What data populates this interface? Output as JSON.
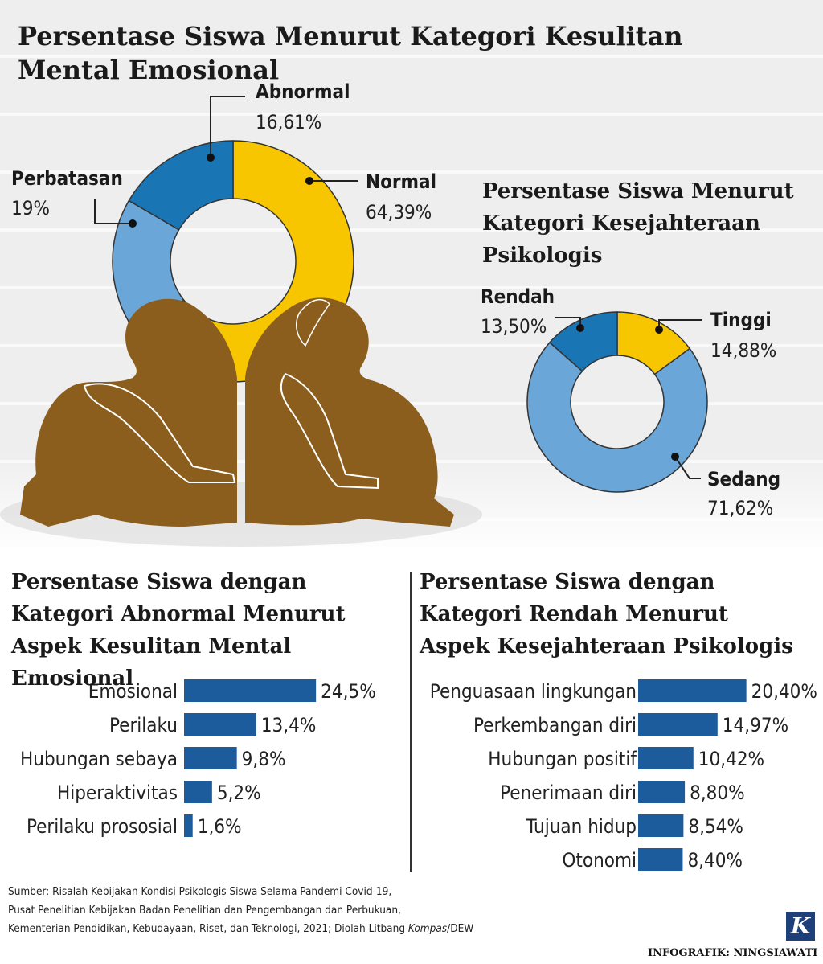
{
  "main_title": "Persentase Siswa Menurut Kategori Kesulitan Mental Emosional",
  "colors": {
    "yellow": "#f7c600",
    "light_blue": "#6aa6d8",
    "dark_blue": "#1a75b4",
    "bar_blue": "#1c5b9c",
    "figure_brown": "#8b5e1e"
  },
  "chart_data": [
    {
      "type": "pie",
      "title": "Persentase Siswa Menurut Kategori Kesulitan Mental Emosional",
      "categories": [
        "Normal",
        "Perbatasan",
        "Abnormal"
      ],
      "labels": [
        "64,39%",
        "19%",
        "16,61%"
      ],
      "values": [
        64.39,
        19,
        16.61
      ]
    },
    {
      "type": "pie",
      "title": "Persentase Siswa Menurut Kategori Kesejahteraan Psikologis",
      "categories": [
        "Tinggi",
        "Sedang",
        "Rendah"
      ],
      "labels": [
        "14,88%",
        "71,62%",
        "13,50%"
      ],
      "values": [
        14.88,
        71.62,
        13.5
      ]
    },
    {
      "type": "bar",
      "title": "Persentase Siswa dengan Kategori Abnormal Menurut Aspek Kesulitan Mental Emosional",
      "categories": [
        "Emosional",
        "Perilaku",
        "Hubungan sebaya",
        "Hiperaktivitas",
        "Perilaku prososial"
      ],
      "labels": [
        "24,5%",
        "13,4%",
        "9,8%",
        "5,2%",
        "1,6%"
      ],
      "values": [
        24.5,
        13.4,
        9.8,
        5.2,
        1.6
      ]
    },
    {
      "type": "bar",
      "title": "Persentase Siswa dengan Kategori Rendah Menurut Aspek Kesejahteraan Psikologis",
      "categories": [
        "Penguasaan lingkungan",
        "Perkembangan diri",
        "Hubungan positif",
        "Penerimaan diri",
        "Tujuan hidup",
        "Otonomi"
      ],
      "labels": [
        "20,40%",
        "14,97%",
        "10,42%",
        "8,80%",
        "8,54%",
        "8,40%"
      ],
      "values": [
        20.4,
        14.97,
        10.42,
        8.8,
        8.54,
        8.4
      ]
    }
  ],
  "source_lines": [
    "Sumber: Risalah Kebijakan Kondisi Psikologis Siswa Selama Pandemi Covid-19,",
    "Pusat Penelitian Kebijakan Badan Penelitian dan Pengembangan dan Perbukuan,",
    "Kementerian Pendidikan, Kebudayaan, Riset, dan Teknologi, 2021; Diolah Litbang",
    "Kompas",
    "/DEW"
  ],
  "logo_letter": "K",
  "credit": "INFOGRAFIK: NINGSIAWATI"
}
